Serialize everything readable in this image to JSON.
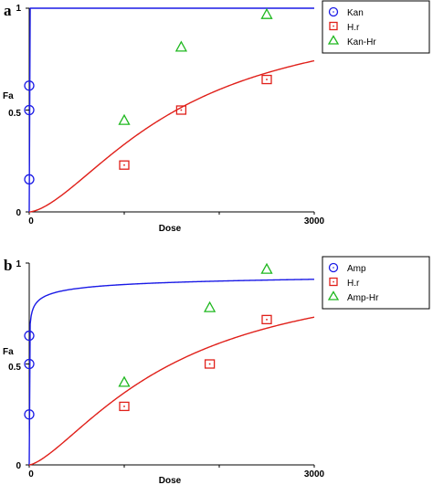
{
  "chart_data": [
    {
      "type": "line",
      "panel_label": "a",
      "xlabel": "Dose",
      "ylabel": "Fa",
      "xlim": [
        0,
        3000
      ],
      "ylim": [
        0,
        1
      ],
      "x_tick_labels": [
        "0",
        "3000"
      ],
      "y_tick_labels": [
        "0",
        "0.5",
        "1"
      ],
      "grid": false,
      "legend_position": "top-right",
      "colors": {
        "kan": "#1a1ae6",
        "hr": "#e0201a",
        "combo": "#1fb81f"
      },
      "series": [
        {
          "name": "Kan",
          "kind": "points",
          "marker": "circle",
          "color": "#1a1ae6",
          "x": [
            0,
            0,
            0
          ],
          "y": [
            0.16,
            0.5,
            0.62
          ]
        },
        {
          "name": "H.r",
          "kind": "points",
          "marker": "square",
          "color": "#e0201a",
          "x": [
            1000,
            1600,
            2500
          ],
          "y": [
            0.23,
            0.5,
            0.65
          ]
        },
        {
          "name": "Kan-Hr",
          "kind": "points",
          "marker": "triangle",
          "color": "#1fb81f",
          "x": [
            1000,
            1600,
            2500
          ],
          "y": [
            0.45,
            0.81,
            0.97
          ]
        }
      ],
      "curves": [
        {
          "color": "#1a1ae6",
          "dm": 0.001,
          "m": 3
        },
        {
          "color": "#e0201a",
          "dm": 1550,
          "m": 1.6
        }
      ]
    },
    {
      "type": "line",
      "panel_label": "b",
      "xlabel": "Dose",
      "ylabel": "Fa",
      "xlim": [
        0,
        3000
      ],
      "ylim": [
        0,
        1
      ],
      "x_tick_labels": [
        "0",
        "3000"
      ],
      "y_tick_labels": [
        "0",
        "0.5",
        "1"
      ],
      "grid": false,
      "legend_position": "top-right",
      "colors": {
        "amp": "#1a1ae6",
        "hr": "#e0201a",
        "combo": "#1fb81f"
      },
      "series": [
        {
          "name": "Amp",
          "kind": "points",
          "marker": "circle",
          "color": "#1a1ae6",
          "x": [
            0,
            0,
            0
          ],
          "y": [
            0.25,
            0.5,
            0.64
          ]
        },
        {
          "name": "H.r",
          "kind": "points",
          "marker": "square",
          "color": "#e0201a",
          "x": [
            1000,
            1900,
            2500
          ],
          "y": [
            0.29,
            0.5,
            0.72
          ]
        },
        {
          "name": "Amp-Hr",
          "kind": "points",
          "marker": "triangle",
          "color": "#1fb81f",
          "x": [
            1000,
            1900,
            2500
          ],
          "y": [
            0.41,
            0.78,
            0.97
          ]
        }
      ],
      "curves": [
        {
          "color": "#1a1ae6",
          "dm": 0.5,
          "m": 0.28
        },
        {
          "color": "#e0201a",
          "dm": 1500,
          "m": 1.45
        }
      ]
    }
  ]
}
